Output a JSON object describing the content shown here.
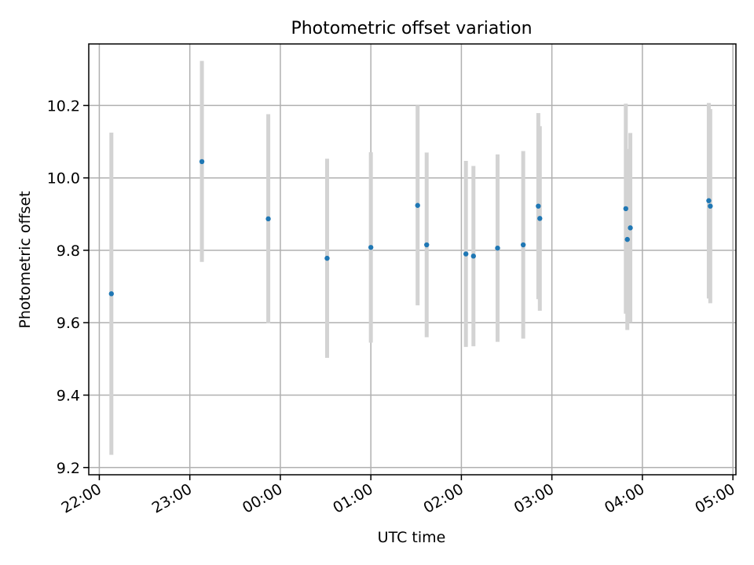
{
  "chart_data": {
    "type": "scatter",
    "title": "Photometric offset variation",
    "xlabel": "UTC time",
    "ylabel": "Photometric offset",
    "x_is_time": true,
    "x_ticks": [
      "22:00",
      "23:00",
      "00:00",
      "01:00",
      "02:00",
      "03:00",
      "04:00",
      "05:00"
    ],
    "xlim": [
      "21:53",
      "05:02"
    ],
    "ylim": [
      9.18,
      10.37
    ],
    "y_ticks": [
      9.2,
      9.4,
      9.6,
      9.8,
      10.0,
      10.2
    ],
    "y_tick_labels": [
      "9.2",
      "9.4",
      "9.6",
      "9.8",
      "10.0",
      "10.2"
    ],
    "grid": true,
    "marker_color": "#1f77b4",
    "errorbar_color": "#d3d3d3",
    "series": [
      {
        "points": [
          {
            "x": "22:08",
            "y": 9.68,
            "ylow": 9.235,
            "yhigh": 10.125
          },
          {
            "x": "23:08",
            "y": 10.045,
            "ylow": 9.768,
            "yhigh": 10.323
          },
          {
            "x": "23:52",
            "y": 9.887,
            "ylow": 9.598,
            "yhigh": 10.176
          },
          {
            "x": "00:31",
            "y": 9.778,
            "ylow": 9.503,
            "yhigh": 10.053
          },
          {
            "x": "01:00",
            "y": 9.808,
            "ylow": 9.545,
            "yhigh": 10.071
          },
          {
            "x": "01:31",
            "y": 9.924,
            "ylow": 9.648,
            "yhigh": 10.2
          },
          {
            "x": "01:37",
            "y": 9.815,
            "ylow": 9.56,
            "yhigh": 10.07
          },
          {
            "x": "02:03",
            "y": 9.79,
            "ylow": 9.533,
            "yhigh": 10.047
          },
          {
            "x": "02:08",
            "y": 9.784,
            "ylow": 9.535,
            "yhigh": 10.033
          },
          {
            "x": "02:24",
            "y": 9.806,
            "ylow": 9.547,
            "yhigh": 10.065
          },
          {
            "x": "02:41",
            "y": 9.815,
            "ylow": 9.556,
            "yhigh": 10.074
          },
          {
            "x": "02:51",
            "y": 9.922,
            "ylow": 9.665,
            "yhigh": 10.179
          },
          {
            "x": "02:52",
            "y": 9.888,
            "ylow": 9.633,
            "yhigh": 10.143
          },
          {
            "x": "03:49",
            "y": 9.915,
            "ylow": 9.625,
            "yhigh": 10.205
          },
          {
            "x": "03:50",
            "y": 9.83,
            "ylow": 9.58,
            "yhigh": 10.08
          },
          {
            "x": "03:52",
            "y": 9.862,
            "ylow": 9.6,
            "yhigh": 10.124
          },
          {
            "x": "04:44",
            "y": 9.937,
            "ylow": 9.667,
            "yhigh": 10.207
          },
          {
            "x": "04:45",
            "y": 9.922,
            "ylow": 9.654,
            "yhigh": 10.19
          }
        ]
      }
    ]
  }
}
